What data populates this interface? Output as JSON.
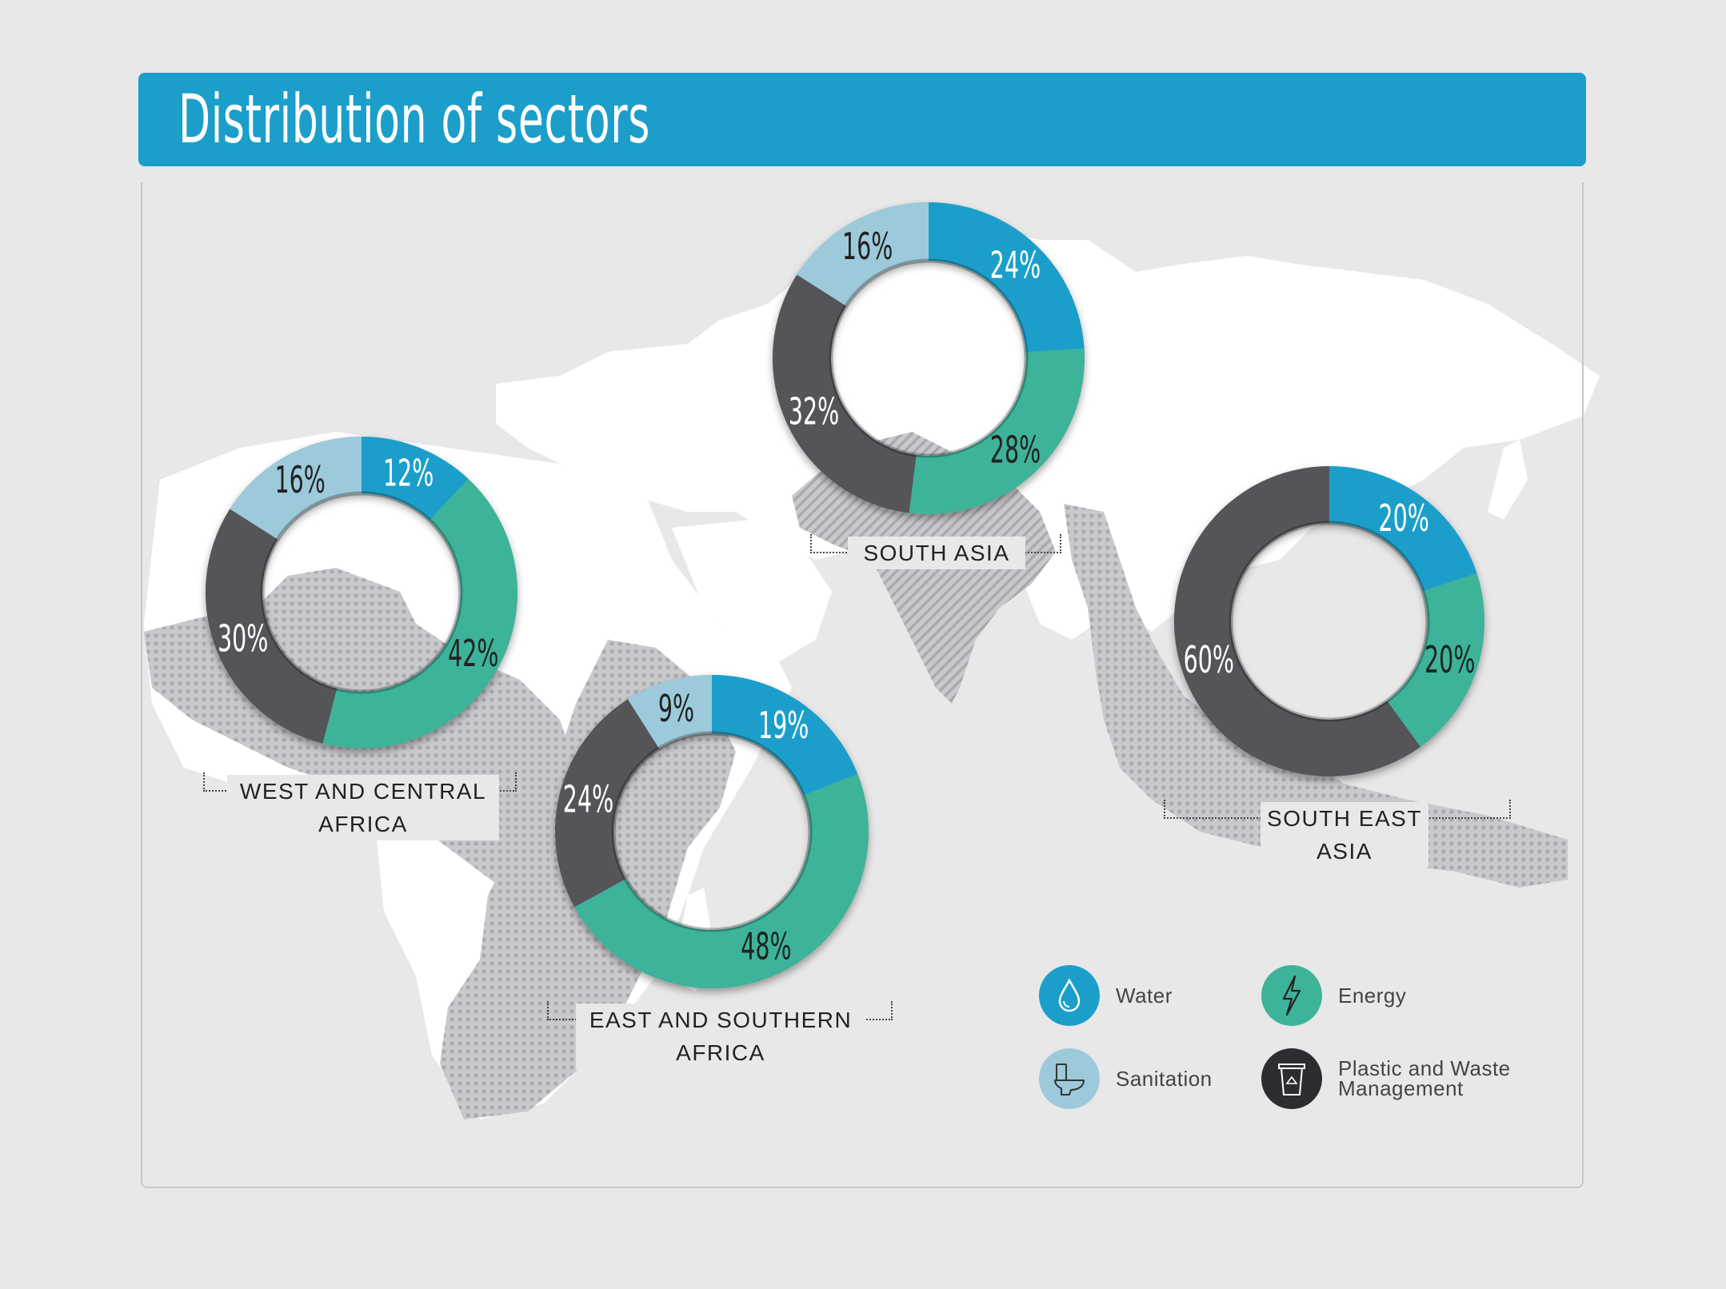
{
  "title": "Distribution of sectors",
  "colors": {
    "water": "#1b9fca",
    "sanitation": "#9ccadb",
    "energy": "#3db39a",
    "plastic": "#555458",
    "title_bar": "#1b9fca",
    "background": "#e8e8e8"
  },
  "legend": [
    {
      "key": "water",
      "label": "Water",
      "icon": "water-drop-icon"
    },
    {
      "key": "energy",
      "label": "Energy",
      "icon": "lightning-bolt-icon"
    },
    {
      "key": "sanitation",
      "label": "Sanitation",
      "icon": "toilet-icon"
    },
    {
      "key": "plastic",
      "label": "Plastic and Waste Management",
      "icon": "recycle-bin-icon"
    }
  ],
  "chart_data": [
    {
      "type": "pie",
      "region": "WEST AND CENTRAL AFRICA",
      "categories": [
        "Water",
        "Energy",
        "Plastic and Waste Management",
        "Sanitation"
      ],
      "values": [
        12,
        42,
        30,
        16
      ],
      "labels": [
        "12%",
        "42%",
        "30%",
        "16%"
      ]
    },
    {
      "type": "pie",
      "region": "SOUTH ASIA",
      "categories": [
        "Water",
        "Energy",
        "Plastic and Waste Management",
        "Sanitation"
      ],
      "values": [
        24,
        28,
        32,
        16
      ],
      "labels": [
        "24%",
        "28%",
        "32%",
        "16%"
      ]
    },
    {
      "type": "pie",
      "region": "EAST AND SOUTHERN AFRICA",
      "categories": [
        "Water",
        "Energy",
        "Plastic and Waste Management",
        "Sanitation"
      ],
      "values": [
        19,
        48,
        24,
        9
      ],
      "labels": [
        "19%",
        "48%",
        "24%",
        "9%"
      ]
    },
    {
      "type": "pie",
      "region": "SOUTH EAST ASIA",
      "categories": [
        "Water",
        "Energy",
        "Plastic and Waste Management",
        "Sanitation"
      ],
      "values": [
        20,
        20,
        60,
        0
      ],
      "labels": [
        "20%",
        "20%",
        "60%",
        ""
      ]
    }
  ]
}
